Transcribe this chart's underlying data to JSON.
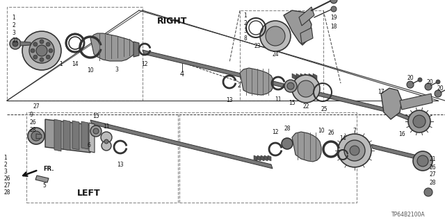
{
  "background_color": "#ffffff",
  "figsize": [
    6.4,
    3.2
  ],
  "dpi": 100,
  "diagram_code": "TP64B2100A",
  "right_label": "RIGHT",
  "left_label": "LEFT",
  "fr_label": "FR.",
  "gray_dark": "#444444",
  "gray_mid": "#888888",
  "gray_light": "#cccccc",
  "gray_bg": "#f0f0f0",
  "line_color": "#222222"
}
